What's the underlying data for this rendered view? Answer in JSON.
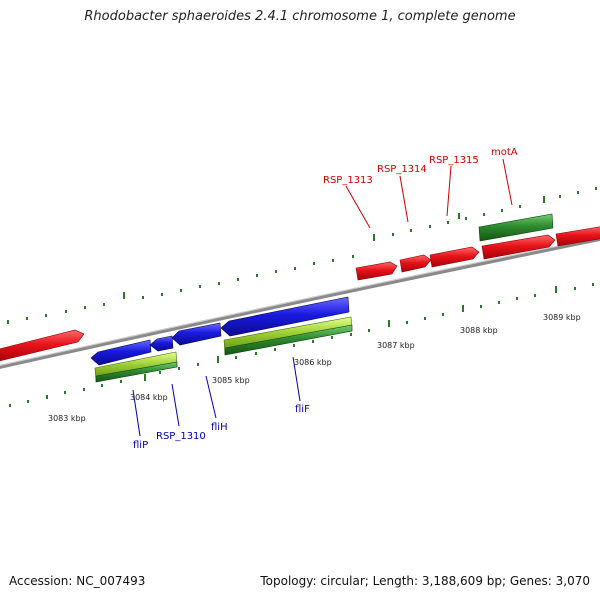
{
  "title": "Rhodobacter sphaeroides 2.4.1 chromosome 1, complete genome",
  "footer": {
    "accession": "Accession: NC_007493",
    "summary": "Topology: circular; Length: 3,188,609 bp; Genes: 3,070"
  },
  "colors": {
    "forward_cds": "#e8131a",
    "reverse_cds": "#1a1ae0",
    "forward_feature": "#2e8b2e",
    "reverse_feature": "#9acd32",
    "backbone": "#888888",
    "ticks": "#2a7a2a",
    "forward_label": "#cc0000",
    "reverse_label": "#0000aa"
  },
  "scale_labels": [
    "3083 kbp",
    "3084 kbp",
    "3085 kbp",
    "3086 kbp",
    "3087 kbp",
    "3088 kbp",
    "3089 kbp"
  ],
  "gene_labels": {
    "forward": [
      "RSP_1313",
      "RSP_1314",
      "RSP_1315",
      "motA"
    ],
    "reverse": [
      "fliP",
      "RSP_1310",
      "fliH",
      "fliF"
    ]
  }
}
